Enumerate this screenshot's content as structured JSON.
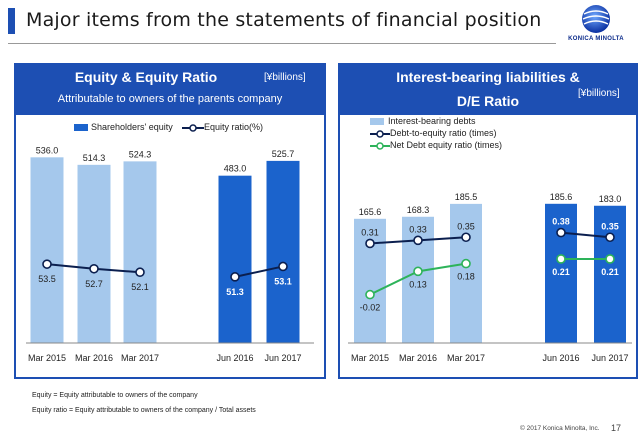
{
  "page": {
    "title": "Major items from the statements of financial position",
    "logo_text": "KONICA MINOLTA",
    "footnote1": "Equity = Equity attributable to owners of the company",
    "footnote2": "Equity ratio = Equity attributable to owners of the company / Total assets",
    "copyright": "© 2017 Konica Minolta, Inc.",
    "page_number": "17"
  },
  "colors": {
    "brand": "#1d4fb3",
    "bar_light": "#a5c8ec",
    "bar_dark": "#1b63cc",
    "line_dark": "#0b1f4f",
    "line_green": "#2db35a"
  },
  "left_panel": {
    "title": "Equity & Equity Ratio",
    "subtitle": "Attributable to owners of the parents company",
    "unit": "[¥billions]",
    "legend_bar": "Shareholders' equity",
    "legend_line": "Equity ratio(%)"
  },
  "right_panel": {
    "title_line1": "Interest-bearing liabilities &",
    "title_line2": "D/E Ratio",
    "unit": "[¥billions]",
    "legend_bar": "Interest-bearing debts",
    "legend_line1": "Debt-to-equity ratio (times)",
    "legend_line2": "Net Debt equity ratio (times)"
  },
  "chart_data": [
    {
      "type": "bar",
      "categories": [
        "Mar 2015",
        "Mar 2016",
        "Mar 2017",
        "Jun 2016",
        "Jun 2017"
      ],
      "series": [
        {
          "name": "Shareholders' equity",
          "values": [
            536.0,
            514.3,
            524.3,
            483.0,
            525.7
          ]
        },
        {
          "name": "Equity ratio(%)",
          "type": "line",
          "values": [
            53.5,
            52.7,
            52.1,
            51.3,
            53.1
          ]
        }
      ],
      "value_labels": [
        "536.0",
        "514.3",
        "524.3",
        "483.0",
        "525.7"
      ],
      "ratio_labels": [
        "53.5",
        "52.7",
        "52.1",
        "51.3",
        "53.1"
      ],
      "ylim": [
        0,
        560
      ]
    },
    {
      "type": "bar",
      "categories": [
        "Mar 2015",
        "Mar 2016",
        "Mar 2017",
        "Jun 2016",
        "Jun 2017"
      ],
      "series": [
        {
          "name": "Interest-bearing debts",
          "values": [
            165.6,
            168.3,
            185.5,
            185.6,
            183.0
          ]
        },
        {
          "name": "Debt-to-equity ratio (times)",
          "type": "line",
          "values": [
            0.31,
            0.33,
            0.35,
            0.38,
            0.35
          ]
        },
        {
          "name": "Net Debt equity ratio (times)",
          "type": "line",
          "values": [
            -0.02,
            0.13,
            0.18,
            0.21,
            0.21
          ]
        }
      ],
      "value_labels": [
        "165.6",
        "168.3",
        "185.5",
        "185.6",
        "183.0"
      ],
      "de_labels": [
        "0.31",
        "0.33",
        "0.35",
        "0.38",
        "0.35"
      ],
      "net_labels": [
        "-0.02",
        "0.13",
        "0.18",
        "0.21",
        "0.21"
      ],
      "ylim": [
        0,
        200
      ]
    }
  ]
}
